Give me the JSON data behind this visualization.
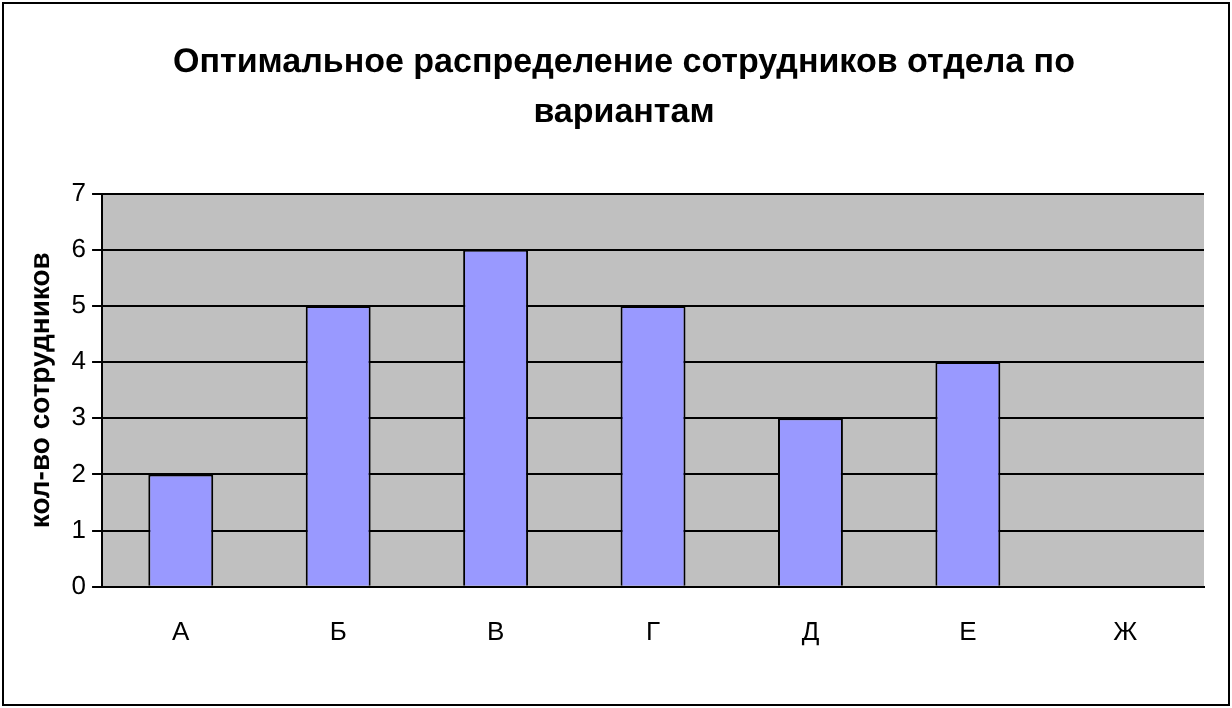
{
  "chart_data": {
    "type": "bar",
    "title": "Оптимальное распределение сотрудников отдела по вариантам",
    "ylabel": "кол-во сотрудников",
    "categories": [
      "А",
      "Б",
      "В",
      "Г",
      "Д",
      "Е",
      "Ж"
    ],
    "values": [
      2,
      5,
      6,
      5,
      3,
      4,
      null
    ],
    "color": "#9999ff",
    "ylim": [
      0,
      7
    ],
    "yticks": [
      0,
      1,
      2,
      3,
      4,
      5,
      6,
      7
    ],
    "grid": "y",
    "legend": false
  }
}
